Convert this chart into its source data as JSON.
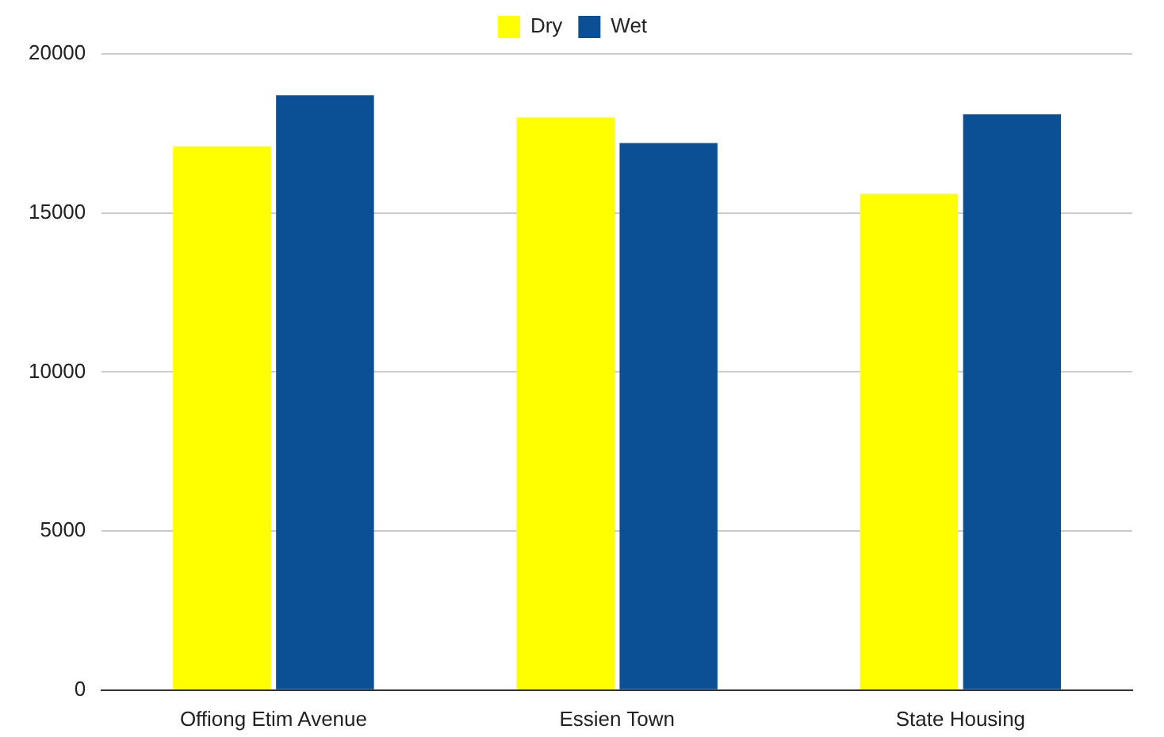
{
  "chart_data": {
    "type": "bar",
    "categories": [
      "Offiong Etim Avenue",
      "Essien Town",
      "State Housing"
    ],
    "series": [
      {
        "name": "Dry",
        "color": "#ffff00",
        "values": [
          17100,
          18000,
          15600
        ]
      },
      {
        "name": "Wet",
        "color": "#0b4f94",
        "values": [
          18700,
          17200,
          18100
        ]
      }
    ],
    "ylim": [
      0,
      20000
    ],
    "yticks": [
      0,
      5000,
      10000,
      15000,
      20000
    ],
    "grid": "y",
    "legend": "top"
  }
}
